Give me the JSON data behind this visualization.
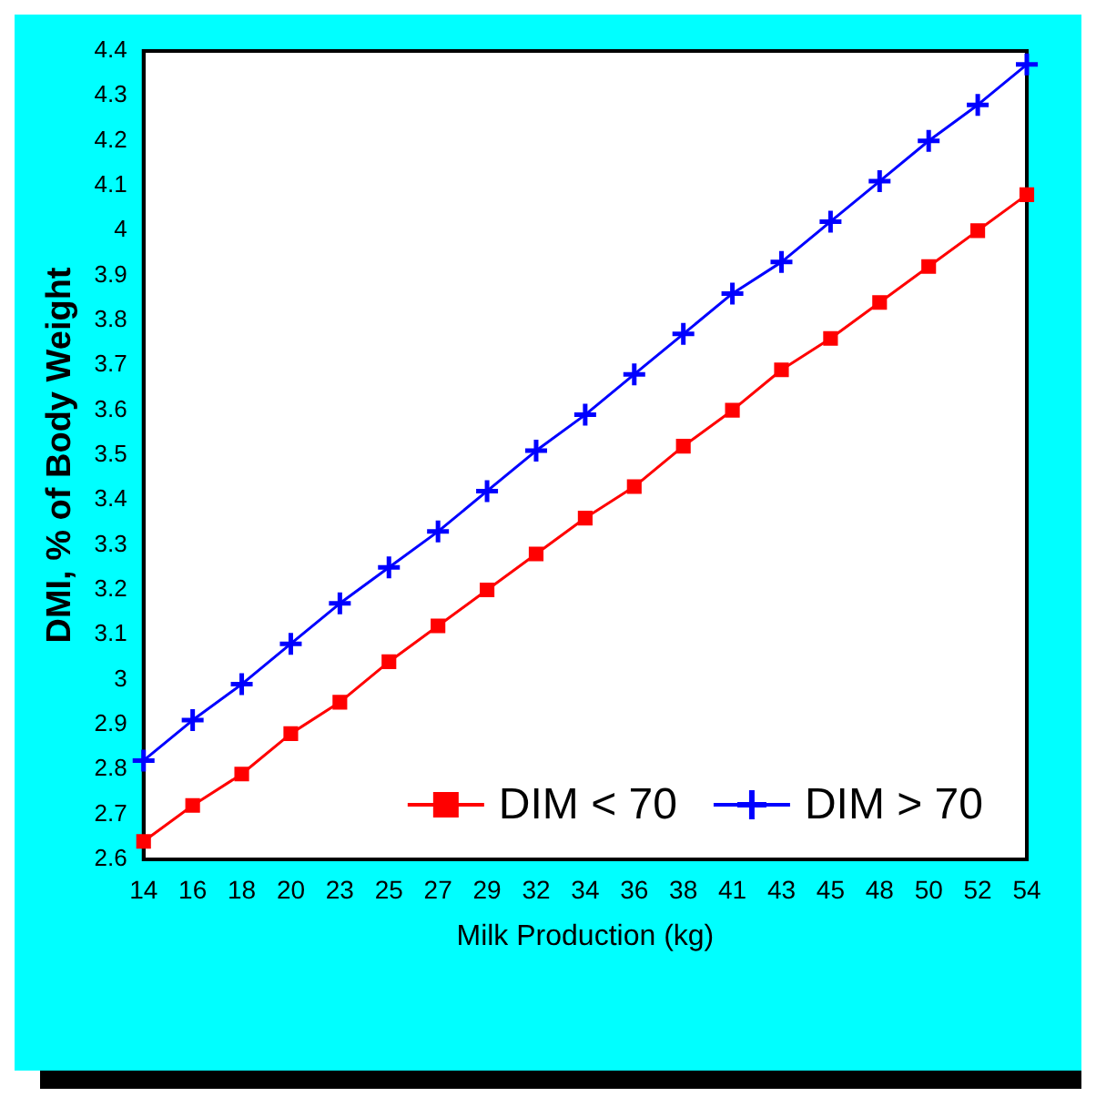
{
  "chart_data": {
    "type": "line",
    "ylabel": "DMI, % of Body Weight",
    "xlabel": "Milk Production (kg)",
    "categories": [
      "14",
      "16",
      "18",
      "20",
      "23",
      "25",
      "27",
      "29",
      "32",
      "34",
      "36",
      "38",
      "41",
      "43",
      "45",
      "48",
      "50",
      "52",
      "54"
    ],
    "series": [
      {
        "name": "DIM < 70",
        "color": "#ff0000",
        "marker": "square",
        "values": [
          2.64,
          2.72,
          2.79,
          2.88,
          2.95,
          3.04,
          3.12,
          3.2,
          3.28,
          3.36,
          3.43,
          3.52,
          3.6,
          3.69,
          3.76,
          3.84,
          3.92,
          4.0,
          4.08
        ]
      },
      {
        "name": "DIM > 70",
        "color": "#0000ff",
        "marker": "cross",
        "values": [
          2.82,
          2.91,
          2.99,
          3.08,
          3.17,
          3.25,
          3.33,
          3.42,
          3.51,
          3.59,
          3.68,
          3.77,
          3.86,
          3.93,
          4.02,
          4.11,
          4.2,
          4.28,
          4.37
        ]
      }
    ],
    "ylim": [
      2.6,
      4.4
    ],
    "yticks": [
      2.6,
      2.7,
      2.8,
      2.9,
      3,
      3.1,
      3.2,
      3.3,
      3.4,
      3.5,
      3.6,
      3.7,
      3.8,
      3.9,
      4,
      4.1,
      4.2,
      4.3,
      4.4
    ],
    "grid": false,
    "legend": "bottom right",
    "line_style": "solid"
  }
}
